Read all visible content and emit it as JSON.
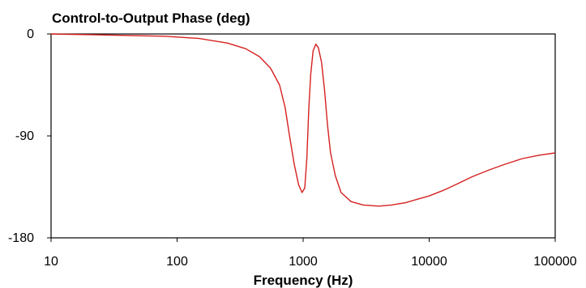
{
  "chart_data": {
    "type": "line",
    "title": "Control-to-Output Phase (deg)",
    "xlabel": "Frequency (Hz)",
    "ylabel": "",
    "x_scale": "log",
    "xlim": [
      10,
      100000
    ],
    "ylim": [
      -180,
      0
    ],
    "x_ticks": [
      "10",
      "100",
      "1000",
      "10000",
      "100000"
    ],
    "y_ticks": [
      "0",
      "-90",
      "-180"
    ],
    "grid": false,
    "legend": "none",
    "line_color": "#d62020",
    "series": [
      {
        "name": "",
        "points": [
          [
            10,
            0
          ],
          [
            30,
            -1
          ],
          [
            80,
            -2
          ],
          [
            150,
            -4
          ],
          [
            250,
            -8
          ],
          [
            350,
            -13
          ],
          [
            450,
            -20
          ],
          [
            550,
            -30
          ],
          [
            650,
            -45
          ],
          [
            720,
            -65
          ],
          [
            780,
            -90
          ],
          [
            850,
            -115
          ],
          [
            920,
            -133
          ],
          [
            980,
            -140
          ],
          [
            1030,
            -136
          ],
          [
            1070,
            -110
          ],
          [
            1110,
            -65
          ],
          [
            1150,
            -35
          ],
          [
            1200,
            -15
          ],
          [
            1260,
            -9
          ],
          [
            1320,
            -12
          ],
          [
            1400,
            -25
          ],
          [
            1480,
            -50
          ],
          [
            1560,
            -80
          ],
          [
            1650,
            -105
          ],
          [
            1800,
            -125
          ],
          [
            2000,
            -140
          ],
          [
            2400,
            -148
          ],
          [
            3000,
            -151
          ],
          [
            4000,
            -152
          ],
          [
            5000,
            -151
          ],
          [
            6500,
            -149
          ],
          [
            8000,
            -146
          ],
          [
            10000,
            -143
          ],
          [
            13000,
            -138
          ],
          [
            17000,
            -132
          ],
          [
            22000,
            -126
          ],
          [
            30000,
            -120
          ],
          [
            40000,
            -115
          ],
          [
            55000,
            -110
          ],
          [
            75000,
            -107
          ],
          [
            100000,
            -105
          ]
        ]
      }
    ]
  }
}
